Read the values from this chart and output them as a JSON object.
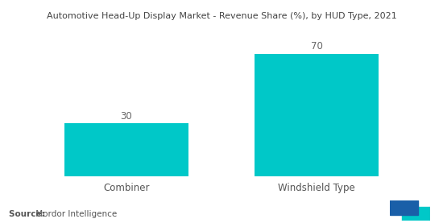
{
  "title": "Automotive Head-Up Display Market - Revenue Share (%), by HUD Type, 2021",
  "categories": [
    "Combiner",
    "Windshield Type"
  ],
  "values": [
    30,
    70
  ],
  "bar_color": "#00C8C8",
  "value_labels": [
    "30",
    "70"
  ],
  "source_label": "Source: ",
  "source_text": " Mordor Intelligence",
  "ylim": [
    0,
    85
  ],
  "title_fontsize": 8.0,
  "label_fontsize": 8.5,
  "tick_fontsize": 8.5,
  "source_fontsize": 7.5,
  "background_color": "#ffffff",
  "bar_width": 0.65,
  "logo_blue": "#1a5fa8",
  "logo_teal": "#00C8C8"
}
